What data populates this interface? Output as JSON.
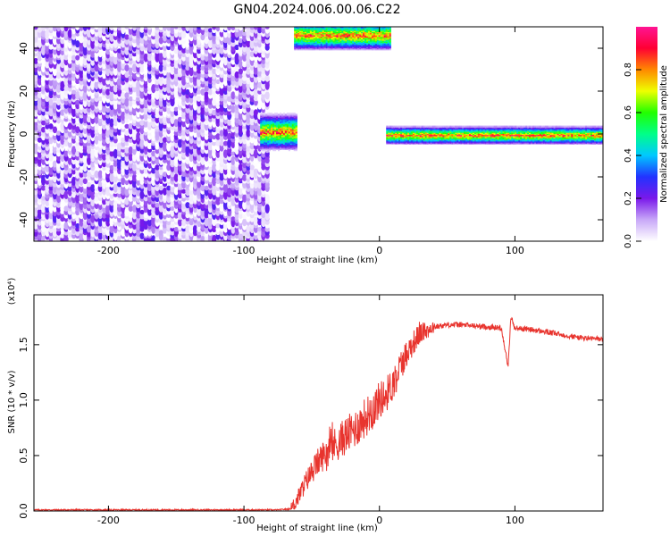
{
  "title": "GN04.2024.006.00.06.C22",
  "chart_data": [
    {
      "type": "heatmap",
      "xlabel": "Height of straight line (km)",
      "ylabel": "Frequency (Hz)",
      "xlim": [
        -255,
        165
      ],
      "ylim": [
        -50,
        50
      ],
      "x_ticks": [
        -200,
        -100,
        0,
        100
      ],
      "y_ticks": [
        -40,
        -20,
        0,
        20,
        40
      ],
      "colorbar": {
        "label": "Normalized spectral amplitude",
        "range": [
          0,
          1
        ],
        "ticks": [
          "0.0",
          "0.2",
          "0.4",
          "0.6",
          "0.8"
        ],
        "colors": [
          "#ffffff",
          "#c8a8f8",
          "#7a18ea",
          "#2233ff",
          "#00c8ff",
          "#00ff88",
          "#22ff00",
          "#eeff00",
          "#ff8800",
          "#ff0033",
          "#ff1493"
        ]
      },
      "regions": [
        {
          "name": "noise",
          "x_range": [
            -255,
            -82
          ],
          "freq_range": [
            -50,
            50
          ],
          "amplitude_range": [
            0.0,
            0.25
          ]
        },
        {
          "name": "onset",
          "x_range": [
            -88,
            -62
          ],
          "freq_range": [
            -4,
            6
          ],
          "amplitude_range": [
            0.1,
            0.9
          ]
        },
        {
          "name": "line_top",
          "x_range": [
            -63,
            8
          ],
          "freq_range": [
            42,
            50
          ],
          "amplitude_range": [
            0.1,
            0.9
          ]
        },
        {
          "name": "line_center",
          "x_range": [
            5,
            165
          ],
          "freq_range": [
            -3,
            2
          ],
          "amplitude_range": [
            0.2,
            0.9
          ]
        }
      ]
    },
    {
      "type": "line",
      "xlabel": "Height of straight line (km)",
      "ylabel": "SNR (10 * v/v)",
      "y_multiplier": "(x10⁴)",
      "xlim": [
        -255,
        165
      ],
      "ylim": [
        0,
        1.95
      ],
      "x_ticks": [
        -200,
        -100,
        0,
        100
      ],
      "y_ticks": [
        "0.0",
        "0.5",
        "1.0",
        "1.5"
      ],
      "color": "#e8342e",
      "x": [
        -255,
        -200,
        -150,
        -100,
        -75,
        -65,
        -60,
        -55,
        -50,
        -45,
        -40,
        -35,
        -30,
        -25,
        -20,
        -15,
        -10,
        -5,
        0,
        5,
        10,
        15,
        20,
        25,
        30,
        40,
        50,
        60,
        70,
        80,
        90,
        95,
        97,
        100,
        110,
        120,
        130,
        140,
        150,
        165
      ],
      "y": [
        0.01,
        0.01,
        0.01,
        0.01,
        0.01,
        0.02,
        0.12,
        0.25,
        0.35,
        0.45,
        0.52,
        0.58,
        0.62,
        0.68,
        0.72,
        0.78,
        0.85,
        0.92,
        1.0,
        1.05,
        1.15,
        1.3,
        1.42,
        1.52,
        1.6,
        1.66,
        1.68,
        1.68,
        1.67,
        1.66,
        1.65,
        1.3,
        1.75,
        1.65,
        1.64,
        1.62,
        1.6,
        1.58,
        1.56,
        1.55
      ]
    }
  ]
}
